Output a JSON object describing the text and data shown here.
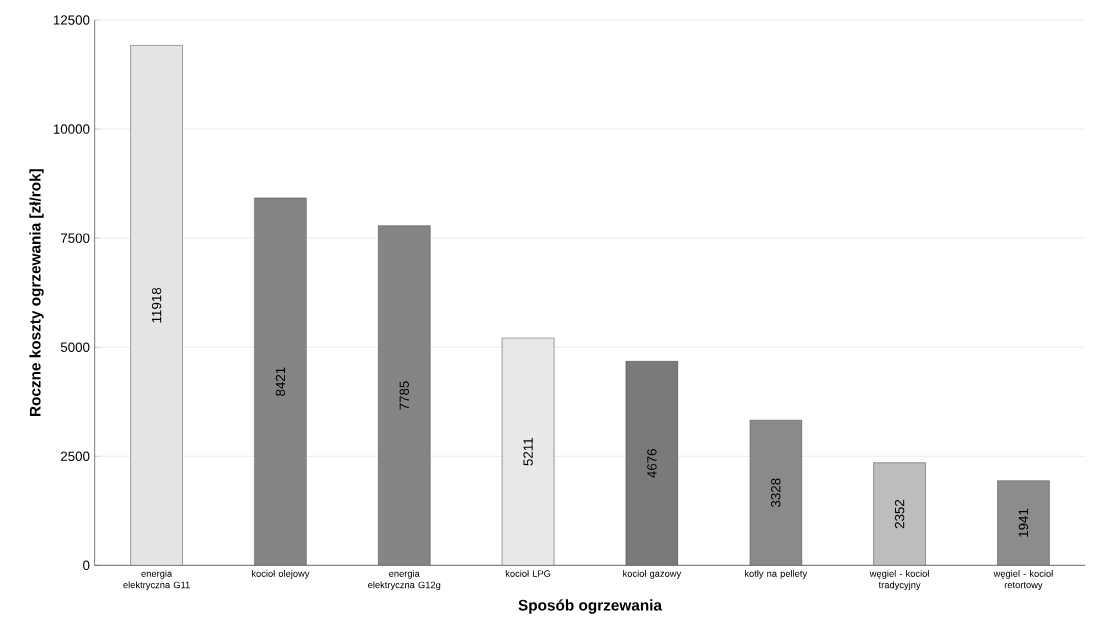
{
  "chart_data": {
    "type": "bar",
    "xlabel": "Sposób ogrzewania",
    "ylabel": "Roczne koszty ogrzewania [zł/rok]",
    "categories": [
      "energia elektryczna G11",
      "kocioł olejowy",
      "energia elektryczna G12g",
      "kocioł LPG",
      "kocioł gazowy",
      "kotły na pellety",
      "węgiel - kocioł tradycyjny",
      "węgiel - kocioł retortowy"
    ],
    "values": [
      11918,
      8421,
      7785,
      5211,
      4676,
      3328,
      2352,
      1941
    ],
    "colors": [
      "#e4e4e4",
      "#858585",
      "#858585",
      "#e8e8e8",
      "#7a7a7a",
      "#8a8a8a",
      "#bdbdbd",
      "#8c8c8c"
    ],
    "ylim": [
      0,
      12500
    ],
    "yticks": [
      0,
      2500,
      5000,
      7500,
      10000,
      12500
    ],
    "grid": "y",
    "data_labels": true
  }
}
